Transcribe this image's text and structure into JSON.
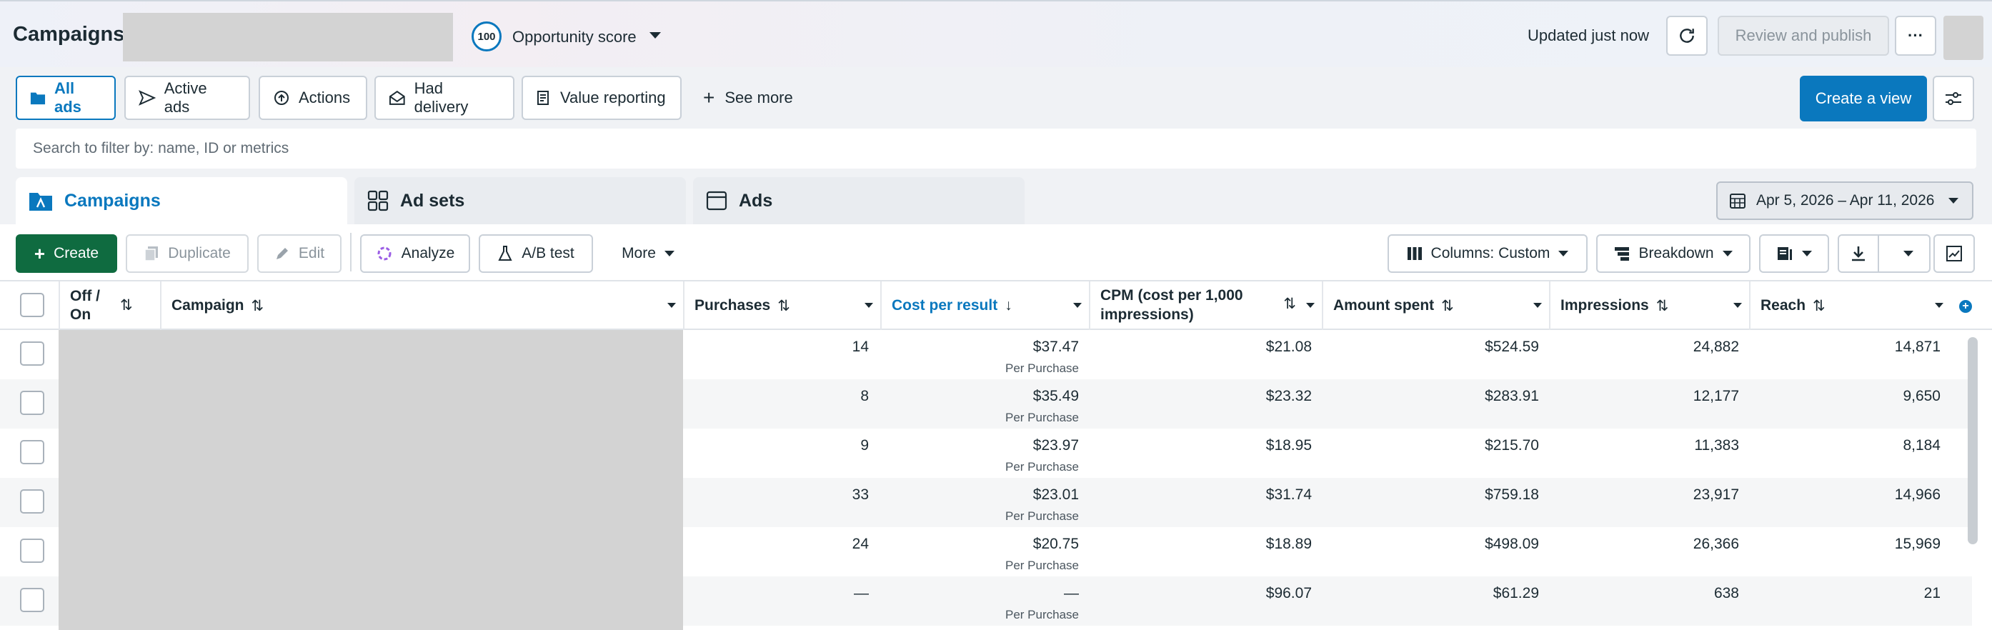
{
  "header": {
    "title": "Campaigns",
    "opportunity_score": "100",
    "opportunity_label": "Opportunity score",
    "updated": "Updated just now",
    "review_publish": "Review and publish",
    "more_label": "···"
  },
  "views": [
    {
      "label": "All ads"
    },
    {
      "label": "Active ads"
    },
    {
      "label": "Actions"
    },
    {
      "label": "Had delivery"
    },
    {
      "label": "Value reporting"
    }
  ],
  "see_more": "See more",
  "create_view": "Create a view",
  "search": {
    "placeholder": "Search to filter by: name, ID or metrics"
  },
  "level_tabs": [
    {
      "label": "Campaigns"
    },
    {
      "label": "Ad sets"
    },
    {
      "label": "Ads"
    }
  ],
  "date_range": "Apr 5, 2026 – Apr 11, 2026",
  "toolbar": {
    "create": "Create",
    "duplicate": "Duplicate",
    "edit": "Edit",
    "analyze": "Analyze",
    "ab_test": "A/B test",
    "more": "More",
    "columns": "Columns: Custom",
    "breakdown": "Breakdown"
  },
  "columns": {
    "off_on": "Off / On",
    "campaign": "Campaign",
    "purchases": "Purchases",
    "cost_per_result": "Cost per result",
    "cpm_line1": "CPM (cost per 1,000",
    "cpm_line2": "impressions)",
    "amount_spent": "Amount spent",
    "impressions": "Impressions",
    "reach": "Reach"
  },
  "rows": [
    {
      "purchases": "14",
      "cost": "$37.47",
      "cost_sub": "Per Purchase",
      "cpm": "$21.08",
      "spent": "$524.59",
      "impressions": "24,882",
      "reach": "14,871"
    },
    {
      "purchases": "8",
      "cost": "$35.49",
      "cost_sub": "Per Purchase",
      "cpm": "$23.32",
      "spent": "$283.91",
      "impressions": "12,177",
      "reach": "9,650"
    },
    {
      "purchases": "9",
      "cost": "$23.97",
      "cost_sub": "Per Purchase",
      "cpm": "$18.95",
      "spent": "$215.70",
      "impressions": "11,383",
      "reach": "8,184"
    },
    {
      "purchases": "33",
      "cost": "$23.01",
      "cost_sub": "Per Purchase",
      "cpm": "$31.74",
      "spent": "$759.18",
      "impressions": "23,917",
      "reach": "14,966"
    },
    {
      "purchases": "24",
      "cost": "$20.75",
      "cost_sub": "Per Purchase",
      "cpm": "$18.89",
      "spent": "$498.09",
      "impressions": "26,366",
      "reach": "15,969"
    },
    {
      "purchases": "—",
      "cost": "—",
      "cost_sub": "Per Purchase",
      "cpm": "$96.07",
      "spent": "$61.29",
      "impressions": "638",
      "reach": "21"
    }
  ],
  "colors": {
    "accent": "#0a78be",
    "create_green": "#0f6b40"
  }
}
